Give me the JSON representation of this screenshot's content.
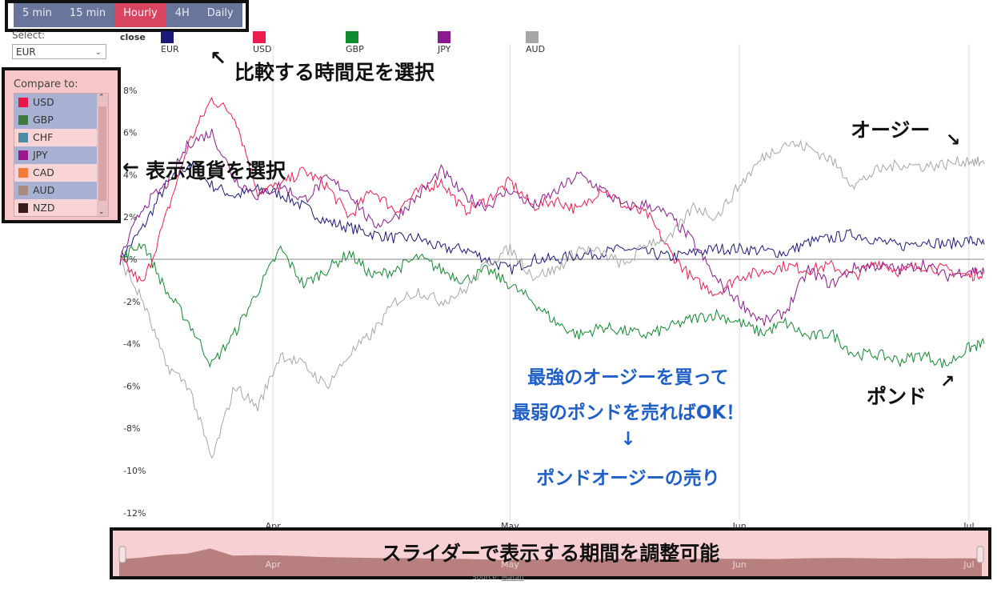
{
  "timeframes": {
    "items": [
      {
        "label": "5 min",
        "active": false
      },
      {
        "label": "15 min",
        "active": false
      },
      {
        "label": "Hourly",
        "active": true
      },
      {
        "label": "4H",
        "active": false
      },
      {
        "label": "Daily",
        "active": false
      }
    ]
  },
  "select": {
    "label": "Select:",
    "value": "EUR"
  },
  "compare": {
    "label": "Compare to:",
    "items": [
      {
        "code": "USD",
        "color": "#e8174a",
        "selected": true
      },
      {
        "code": "GBP",
        "color": "#3e7a3e",
        "selected": true
      },
      {
        "code": "CHF",
        "color": "#4f8aa3",
        "selected": false
      },
      {
        "code": "JPY",
        "color": "#9a1a8e",
        "selected": true
      },
      {
        "code": "CAD",
        "color": "#f57a35",
        "selected": false
      },
      {
        "code": "AUD",
        "color": "#a98b80",
        "selected": true
      },
      {
        "code": "NZD",
        "color": "#3a1a1a",
        "selected": false
      }
    ]
  },
  "legend": {
    "head": "close",
    "items": [
      {
        "name": "EUR",
        "color": "#1a1a7a"
      },
      {
        "name": "USD",
        "color": "#ee1d4f"
      },
      {
        "name": "GBP",
        "color": "#108a2e"
      },
      {
        "name": "JPY",
        "color": "#8b1a8f"
      },
      {
        "name": "AUD",
        "color": "#a6a6a6"
      }
    ]
  },
  "annotations": {
    "timeframe_note": "比較する時間足を選択",
    "currency_note": "表示通貨を選択",
    "aussie": "オージー",
    "pound": "ポンド",
    "strategy_line1": "最強のオージーを買って",
    "strategy_line2": "最弱のポンドを売ればOK！",
    "strategy_arrow": "↓",
    "strategy_line3": "ポンドオージーの売り",
    "slider_note": "スライダーで表示する期間を調整可能"
  },
  "slider": {
    "months": [
      "Apr",
      "May",
      "Jun",
      "Jul"
    ]
  },
  "source": {
    "label": "Source:",
    "link": "Matafi"
  },
  "chart_data": {
    "type": "line",
    "ylabel": "",
    "ylim": [
      -12,
      9
    ],
    "y_ticks": [
      "8%",
      "6%",
      "4%",
      "2%",
      "0%",
      "-2%",
      "-4%",
      "-6%",
      "-8%",
      "-10%",
      "-12%"
    ],
    "x_ticks": [
      "Apr",
      "May",
      "Jun",
      "Jul"
    ],
    "x_tick_days": [
      20,
      51,
      81,
      111
    ],
    "grid": true,
    "x_days": [
      0,
      3,
      6,
      9,
      12,
      15,
      18,
      21,
      24,
      27,
      30,
      33,
      36,
      39,
      42,
      45,
      48,
      51,
      54,
      57,
      60,
      63,
      66,
      69,
      72,
      75,
      78,
      81,
      84,
      87,
      90,
      93,
      96,
      99,
      102,
      105,
      108,
      111,
      113
    ],
    "series": [
      {
        "name": "EUR",
        "color": "#1a1a7a",
        "values": [
          0,
          1.5,
          3.5,
          4.5,
          3.5,
          3.0,
          3.3,
          3.1,
          2.5,
          1.8,
          1.5,
          1.2,
          1.0,
          1.0,
          0.5,
          0.5,
          0,
          -0.5,
          0,
          0,
          0.2,
          0.3,
          0.5,
          0.3,
          0.1,
          0.3,
          0.5,
          0.5,
          0.4,
          0.3,
          0.8,
          1.0,
          1.2,
          0.9,
          0.6,
          0.9,
          0.7,
          0.9,
          0.7
        ]
      },
      {
        "name": "USD",
        "color": "#ee1d4f",
        "values": [
          0,
          -1.2,
          2.0,
          5.5,
          7.6,
          6.8,
          3.2,
          3.5,
          4.2,
          3.5,
          2.0,
          3.3,
          2.3,
          3.2,
          3.7,
          2.3,
          2.8,
          3.7,
          2.5,
          2.8,
          2.3,
          3.4,
          2.5,
          2.1,
          0.3,
          -1.0,
          -1.6,
          -0.8,
          -0.6,
          -0.3,
          -0.5,
          -0.3,
          -0.8,
          -0.1,
          -0.6,
          -0.3,
          -0.5,
          -0.8,
          -0.6
        ]
      },
      {
        "name": "GBP",
        "color": "#108a2e",
        "values": [
          0,
          0.8,
          -1.5,
          -3.0,
          -5.0,
          -3.5,
          -1.5,
          0.5,
          -1.2,
          -0.5,
          0.3,
          -0.8,
          -0.5,
          0.1,
          -0.5,
          -1.0,
          -0.5,
          -1.2,
          -2.0,
          -3.0,
          -3.6,
          -3.2,
          -3.4,
          -3.6,
          -3.2,
          -2.8,
          -2.6,
          -3.0,
          -3.5,
          -3.0,
          -3.7,
          -3.5,
          -4.5,
          -4.5,
          -4.8,
          -4.5,
          -5.0,
          -4.2,
          -4.0
        ]
      },
      {
        "name": "JPY",
        "color": "#8b1a8f",
        "values": [
          0,
          2.5,
          3.5,
          5.5,
          6.0,
          3.8,
          3.0,
          3.5,
          2.8,
          3.8,
          3.2,
          1.6,
          2.0,
          3.0,
          4.2,
          3.0,
          2.5,
          3.3,
          2.5,
          3.2,
          4.0,
          3.3,
          2.5,
          2.6,
          2.0,
          0.8,
          -1.0,
          -2.0,
          -3.0,
          -2.5,
          -0.5,
          -1.2,
          -0.4,
          -0.3,
          -0.5,
          -0.2,
          -0.8,
          -0.5,
          -0.6
        ]
      },
      {
        "name": "AUD",
        "color": "#a6a6a6",
        "values": [
          0,
          -2.0,
          -5.0,
          -6.0,
          -9.5,
          -6.0,
          -7.0,
          -4.5,
          -5.0,
          -6.0,
          -4.5,
          -3.5,
          -2.0,
          -1.5,
          -2.0,
          -1.5,
          -0.2,
          0.5,
          -0.8,
          -0.5,
          0.5,
          0.3,
          -0.3,
          0.8,
          1.0,
          2.5,
          2.0,
          3.5,
          4.8,
          5.5,
          5.3,
          4.7,
          3.5,
          4.2,
          4.5,
          4.4,
          4.5,
          4.7,
          4.5
        ]
      }
    ]
  }
}
